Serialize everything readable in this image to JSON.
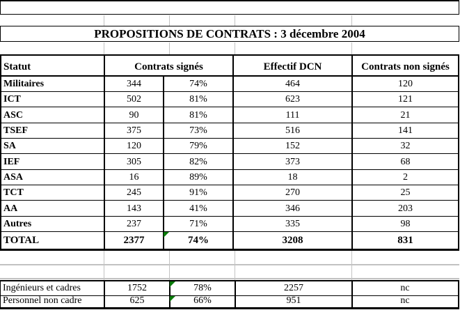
{
  "title": "PROPOSITIONS DE CONTRATS : 3 décembre 2004",
  "table": {
    "headers": {
      "statut": "Statut",
      "signed": "Contrats signés",
      "effectif": "Effectif DCN",
      "not_signed": "Contrats non signés"
    },
    "rows": [
      {
        "statut": "Militaires",
        "signed": "344",
        "signed_pct": "74%",
        "effectif": "464",
        "not_signed": "120"
      },
      {
        "statut": "ICT",
        "signed": "502",
        "signed_pct": "81%",
        "effectif": "623",
        "not_signed": "121"
      },
      {
        "statut": "ASC",
        "signed": "90",
        "signed_pct": "81%",
        "effectif": "111",
        "not_signed": "21"
      },
      {
        "statut": "TSEF",
        "signed": "375",
        "signed_pct": "73%",
        "effectif": "516",
        "not_signed": "141"
      },
      {
        "statut": "SA",
        "signed": "120",
        "signed_pct": "79%",
        "effectif": "152",
        "not_signed": "32"
      },
      {
        "statut": "IEF",
        "signed": "305",
        "signed_pct": "82%",
        "effectif": "373",
        "not_signed": "68"
      },
      {
        "statut": "ASA",
        "signed": "16",
        "signed_pct": "89%",
        "effectif": "18",
        "not_signed": "2"
      },
      {
        "statut": "TCT",
        "signed": "245",
        "signed_pct": "91%",
        "effectif": "270",
        "not_signed": "25"
      },
      {
        "statut": "AA",
        "signed": "143",
        "signed_pct": "41%",
        "effectif": "346",
        "not_signed": "203"
      },
      {
        "statut": "Autres",
        "signed": "237",
        "signed_pct": "71%",
        "effectif": "335",
        "not_signed": "98"
      }
    ],
    "total": {
      "statut": "TOTAL",
      "signed": "2377",
      "signed_pct": "74%",
      "effectif": "3208",
      "not_signed": "831"
    }
  },
  "summary_rows": [
    {
      "statut": "Ingénieurs et cadres",
      "signed": "1752",
      "signed_pct": "78%",
      "effectif": "2257",
      "not_signed": "nc"
    },
    {
      "statut": "Personnel non cadre",
      "signed": "625",
      "signed_pct": "66%",
      "effectif": "951",
      "not_signed": "nc"
    }
  ],
  "colors": {
    "flag_green": "#0a7a0a",
    "gridline": "#c2c2c2",
    "border": "#000000"
  }
}
